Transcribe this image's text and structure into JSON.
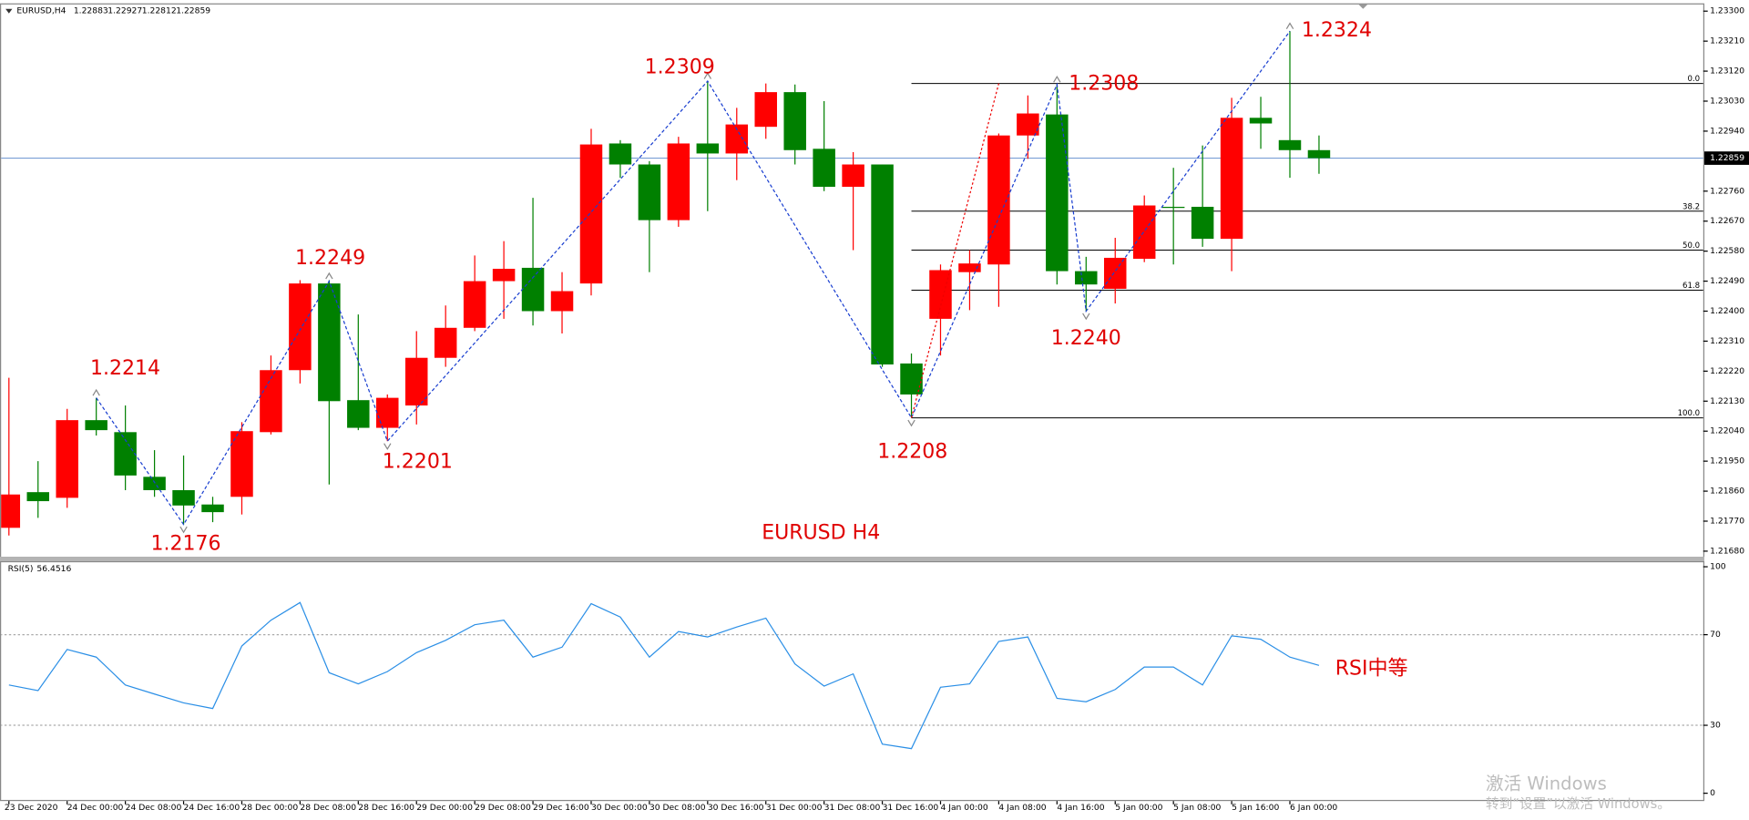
{
  "chart_data": [
    {
      "type": "candlestick",
      "title": "EURUSD,H4",
      "categories": [
        "23 Dec 2020",
        null,
        "24 Dec 00:00",
        null,
        "24 Dec 08:00",
        null,
        "24 Dec 16:00",
        null,
        "28 Dec 00:00",
        null,
        "28 Dec 08:00",
        null,
        "28 Dec 16:00",
        null,
        "29 Dec 00:00",
        null,
        "29 Dec 08:00",
        null,
        "29 Dec 16:00",
        null,
        "30 Dec 00:00",
        null,
        "30 Dec 08:00",
        null,
        "30 Dec 16:00",
        null,
        "31 Dec 00:00",
        null,
        "31 Dec 08:00",
        null,
        "31 Dec 16:00",
        null,
        "4 Jan 00:00",
        null,
        "4 Jan 08:00",
        null,
        "4 Jan 16:00",
        null,
        "5 Jan 00:00",
        null,
        "5 Jan 08:00",
        null,
        "5 Jan 16:00",
        null,
        "6 Jan 00:00",
        null
      ],
      "open": [
        1.2175,
        1.21857,
        1.2184,
        1.22073,
        1.22037,
        1.21903,
        1.21863,
        1.2182,
        1.21843,
        1.22037,
        1.22223,
        1.22483,
        1.22133,
        1.2205,
        1.22117,
        1.2226,
        1.2235,
        1.2249,
        1.2253,
        1.224,
        1.22483,
        1.22903,
        1.2284,
        1.22673,
        1.22903,
        1.22873,
        1.22953,
        1.23057,
        1.22887,
        1.22773,
        1.2284,
        1.22243,
        1.22377,
        1.22517,
        1.2254,
        1.22927,
        1.2299,
        1.2252,
        1.22467,
        1.22557,
        1.22713,
        1.22713,
        1.22617,
        1.2298,
        1.22913,
        1.22883
      ],
      "high": [
        1.222,
        1.2195,
        1.22107,
        1.2214,
        1.22117,
        1.21983,
        1.21967,
        1.21843,
        1.22067,
        1.22267,
        1.22493,
        1.22493,
        1.2239,
        1.2215,
        1.2234,
        1.22417,
        1.22567,
        1.2261,
        1.2274,
        1.22517,
        1.22947,
        1.22913,
        1.2285,
        1.22923,
        1.23087,
        1.2301,
        1.23083,
        1.2308,
        1.2303,
        1.22877,
        1.2284,
        1.22273,
        1.2254,
        1.22583,
        1.22933,
        1.23047,
        1.2308,
        1.22563,
        1.2262,
        1.22747,
        1.2283,
        1.22897,
        1.2304,
        1.23043,
        1.2324,
        1.22927
      ],
      "low": [
        1.21727,
        1.2178,
        1.2181,
        1.22027,
        1.21863,
        1.21843,
        1.2176,
        1.21767,
        1.2179,
        1.2203,
        1.22183,
        1.2188,
        1.22043,
        1.2201,
        1.2206,
        1.22233,
        1.2234,
        1.22377,
        1.22357,
        1.22333,
        1.22447,
        1.228,
        1.22517,
        1.22653,
        1.227,
        1.22793,
        1.22917,
        1.2284,
        1.2276,
        1.22583,
        1.22233,
        1.2208,
        1.22267,
        1.22403,
        1.22413,
        1.22857,
        1.2248,
        1.224,
        1.22423,
        1.22547,
        1.2254,
        1.22593,
        1.2252,
        1.22887,
        1.228,
        1.22812
      ],
      "close": [
        1.2185,
        1.2183,
        1.22073,
        1.22043,
        1.21907,
        1.21863,
        1.21817,
        1.21797,
        1.2204,
        1.22223,
        1.22483,
        1.2213,
        1.2205,
        1.2214,
        1.2226,
        1.2235,
        1.2249,
        1.22527,
        1.224,
        1.2246,
        1.229,
        1.2284,
        1.22673,
        1.22903,
        1.22873,
        1.2296,
        1.23057,
        1.22883,
        1.22773,
        1.2284,
        1.2224,
        1.2215,
        1.22523,
        1.22543,
        1.22927,
        1.22993,
        1.2252,
        1.2248,
        1.2256,
        1.22717,
        1.2271,
        1.22617,
        1.2298,
        1.22963,
        1.22883,
        1.22859
      ],
      "up_color": "#ff0000",
      "down_color": "#008000",
      "ylim": [
        1.2166,
        1.2332
      ],
      "yticks": [
        {
          "value": 1.233,
          "label": "1.23300"
        },
        {
          "value": 1.2321,
          "label": "1.23210"
        },
        {
          "value": 1.2312,
          "label": "1.23120"
        },
        {
          "value": 1.2303,
          "label": "1.23030"
        },
        {
          "value": 1.2294,
          "label": "1.22940"
        },
        {
          "value": 1.2276,
          "label": "1.22760"
        },
        {
          "value": 1.2267,
          "label": "1.22670"
        },
        {
          "value": 1.2258,
          "label": "1.22580"
        },
        {
          "value": 1.2249,
          "label": "1.22490"
        },
        {
          "value": 1.224,
          "label": "1.22400"
        },
        {
          "value": 1.2231,
          "label": "1.22310"
        },
        {
          "value": 1.2222,
          "label": "1.22220"
        },
        {
          "value": 1.2213,
          "label": "1.22130"
        },
        {
          "value": 1.2204,
          "label": "1.22040"
        },
        {
          "value": 1.2195,
          "label": "1.21950"
        },
        {
          "value": 1.2186,
          "label": "1.21860"
        },
        {
          "value": 1.2177,
          "label": "1.21770"
        },
        {
          "value": 1.2168,
          "label": "1.21680"
        }
      ],
      "current_price": 1.22859,
      "zigzag": {
        "indices": [
          3,
          6,
          11,
          13,
          24,
          31,
          36,
          37,
          44
        ],
        "values": [
          1.2214,
          1.2176,
          1.2249,
          1.2201,
          1.2309,
          1.2208,
          1.2308,
          1.224,
          1.2324
        ],
        "value_labels": [
          "1.2214",
          "1.2176",
          "1.2249",
          "1.2201",
          "1.2309",
          "1.2208",
          "1.2308",
          "1.2240",
          "1.2324"
        ],
        "color": "#1a3fd0"
      },
      "fib": {
        "x_start": 31,
        "levels": [
          {
            "value": 0,
            "label": "0.0"
          },
          {
            "value": 38.2,
            "label": "38.2"
          },
          {
            "value": 50,
            "label": "50.0"
          },
          {
            "value": 61.8,
            "label": "61.8"
          },
          {
            "value": 100,
            "label": "100.0"
          }
        ],
        "prices": [
          1.23083,
          1.227,
          1.22583,
          1.22463,
          1.2208
        ]
      },
      "annotation": "EURUSD H4"
    },
    {
      "type": "line",
      "name": "RSI(5)",
      "values": [
        47.8,
        45.3,
        63.5,
        60.1,
        47.8,
        43.8,
        39.9,
        37.4,
        65,
        76.4,
        84.2,
        53.2,
        48.3,
        53.7,
        62.1,
        67.5,
        74.4,
        76.4,
        60.1,
        64.5,
        83.7,
        77.8,
        60.1,
        71.4,
        69,
        73.4,
        77.3,
        57.1,
        47.3,
        52.7,
        21.7,
        19.7,
        46.8,
        48.3,
        67,
        69,
        41.9,
        40.4,
        45.8,
        55.7,
        55.7,
        47.8,
        69.5,
        68,
        60.1,
        56.4516
      ],
      "color": "#2b8fe6",
      "ylim": [
        0,
        100
      ],
      "yticks": [
        0,
        30,
        70,
        100
      ],
      "levels": [
        30,
        70
      ],
      "annotation": "RSI中等"
    }
  ],
  "watermark": {
    "line1": "激活 Windows",
    "line2": "转到“设置”以激活 Windows。"
  }
}
